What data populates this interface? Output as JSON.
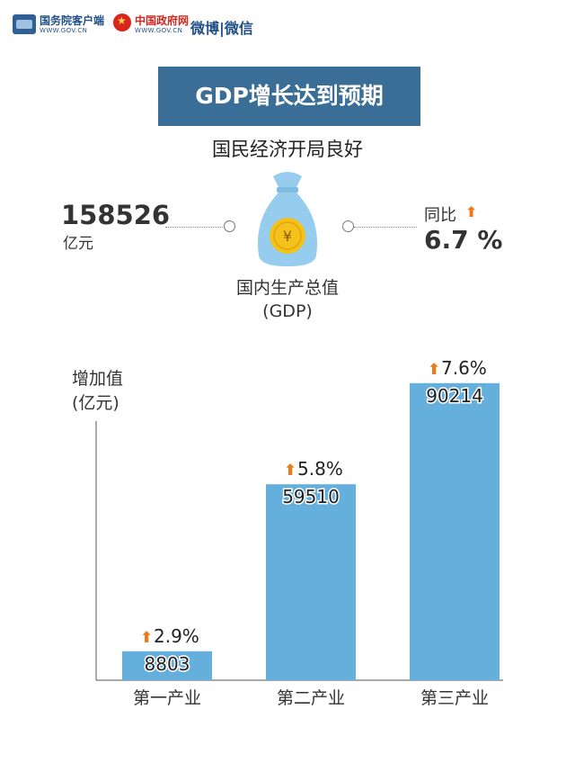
{
  "header": {
    "app1_name": "国务院客户端",
    "app1_url": "WWW.GOV.CN",
    "app2_name": "中国政府网",
    "app2_url": "WWW.GOV.CN",
    "app3_name": "微博|微信"
  },
  "title": "GDP增长达到预期",
  "subtitle": "国民经济开局良好",
  "gdp": {
    "value": "158526",
    "unit": "亿元",
    "yoy_label": "同比",
    "yoy_value": "6.7 %",
    "label": "国内生产总值\n(GDP)",
    "currency_symbol": "¥"
  },
  "colors": {
    "bar": "#65afdc",
    "title_bg": "#3b6e96",
    "arrow": "#f07a1a",
    "bag": "#96cdee",
    "coin": "#f4c21a"
  },
  "chart_data": {
    "type": "bar",
    "ylabel": "增加值\n(亿元)",
    "categories": [
      "第一产业",
      "第二产业",
      "第三产业"
    ],
    "values": [
      8803,
      59510,
      90214
    ],
    "growth_labels": [
      "2.9%",
      "5.8%",
      "7.6%"
    ],
    "ylim": [
      0,
      100000
    ]
  }
}
